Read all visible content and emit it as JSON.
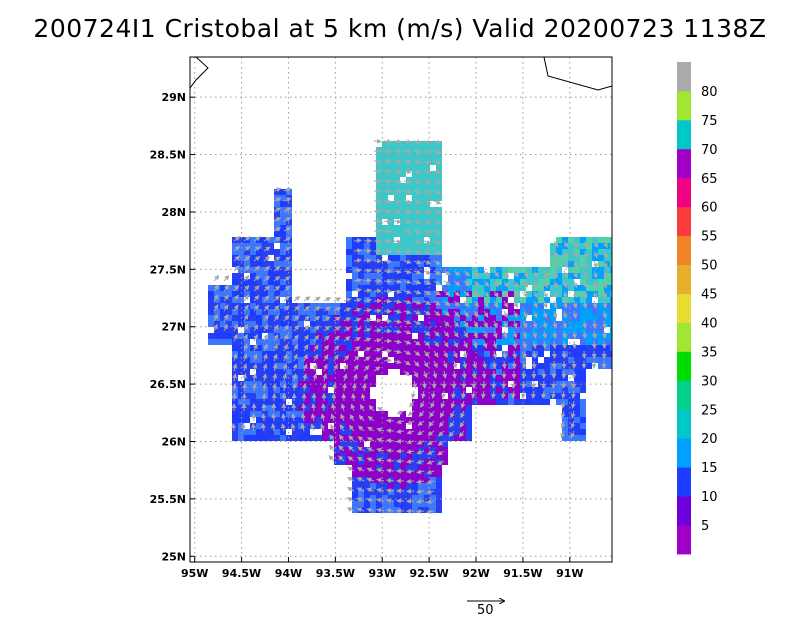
{
  "title": "200724I1 Cristobal at 5 km (m/s) Valid 20200723 1138Z",
  "map": {
    "lon_range": [
      -95.05,
      -90.55
    ],
    "lat_range": [
      24.95,
      29.35
    ],
    "lon_ticks": [
      {
        "value": -95.0,
        "label": "95W"
      },
      {
        "value": -94.5,
        "label": "94.5W"
      },
      {
        "value": -94.0,
        "label": "94W"
      },
      {
        "value": -93.5,
        "label": "93.5W"
      },
      {
        "value": -93.0,
        "label": "93W"
      },
      {
        "value": -92.5,
        "label": "92.5W"
      },
      {
        "value": -92.0,
        "label": "92W"
      },
      {
        "value": -91.5,
        "label": "91.5W"
      },
      {
        "value": -91.0,
        "label": "91W"
      }
    ],
    "lat_ticks": [
      {
        "value": 25.0,
        "label": "25N"
      },
      {
        "value": 25.5,
        "label": "25.5N"
      },
      {
        "value": 26.0,
        "label": "26N"
      },
      {
        "value": 26.5,
        "label": "26.5N"
      },
      {
        "value": 27.0,
        "label": "27N"
      },
      {
        "value": 27.5,
        "label": "27.5N"
      },
      {
        "value": 28.0,
        "label": "28N"
      },
      {
        "value": 28.5,
        "label": "28.5N"
      },
      {
        "value": 29.0,
        "label": "29N"
      }
    ],
    "grid": true,
    "center": {
      "lon": -92.9,
      "lat": 26.45
    }
  },
  "colorbar": {
    "labels": [
      "5",
      "10",
      "15",
      "20",
      "25",
      "30",
      "35",
      "40",
      "45",
      "50",
      "55",
      "60",
      "65",
      "70",
      "75",
      "80"
    ],
    "colors": [
      "#a000c8",
      "#6e00dc",
      "#1e3cff",
      "#00a0ff",
      "#00c8c8",
      "#00d28c",
      "#00dc00",
      "#a0e632",
      "#e6dc32",
      "#e6af2d",
      "#f08228",
      "#fa3c3c",
      "#f00082",
      "#a000c8",
      "#00c8c8",
      "#a0e632",
      "#aaaaaa"
    ]
  },
  "reference_vector": {
    "label": "50"
  }
}
